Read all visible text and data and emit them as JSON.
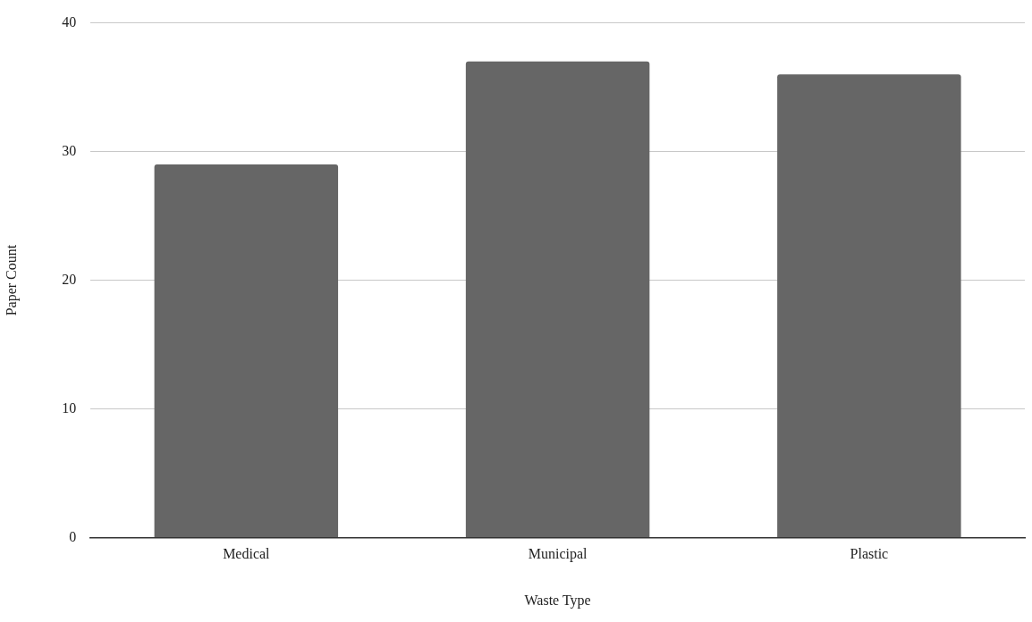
{
  "chart_data": {
    "type": "bar",
    "xlabel": "Waste Type",
    "ylabel": "Paper Count",
    "categories": [
      "Medical",
      "Municipal",
      "Plastic"
    ],
    "values": [
      29,
      37,
      36
    ],
    "color": "#666666",
    "ylim": [
      0,
      40
    ],
    "yticks": [
      0,
      10,
      20,
      30,
      40
    ],
    "grid": "y",
    "legend": false
  }
}
